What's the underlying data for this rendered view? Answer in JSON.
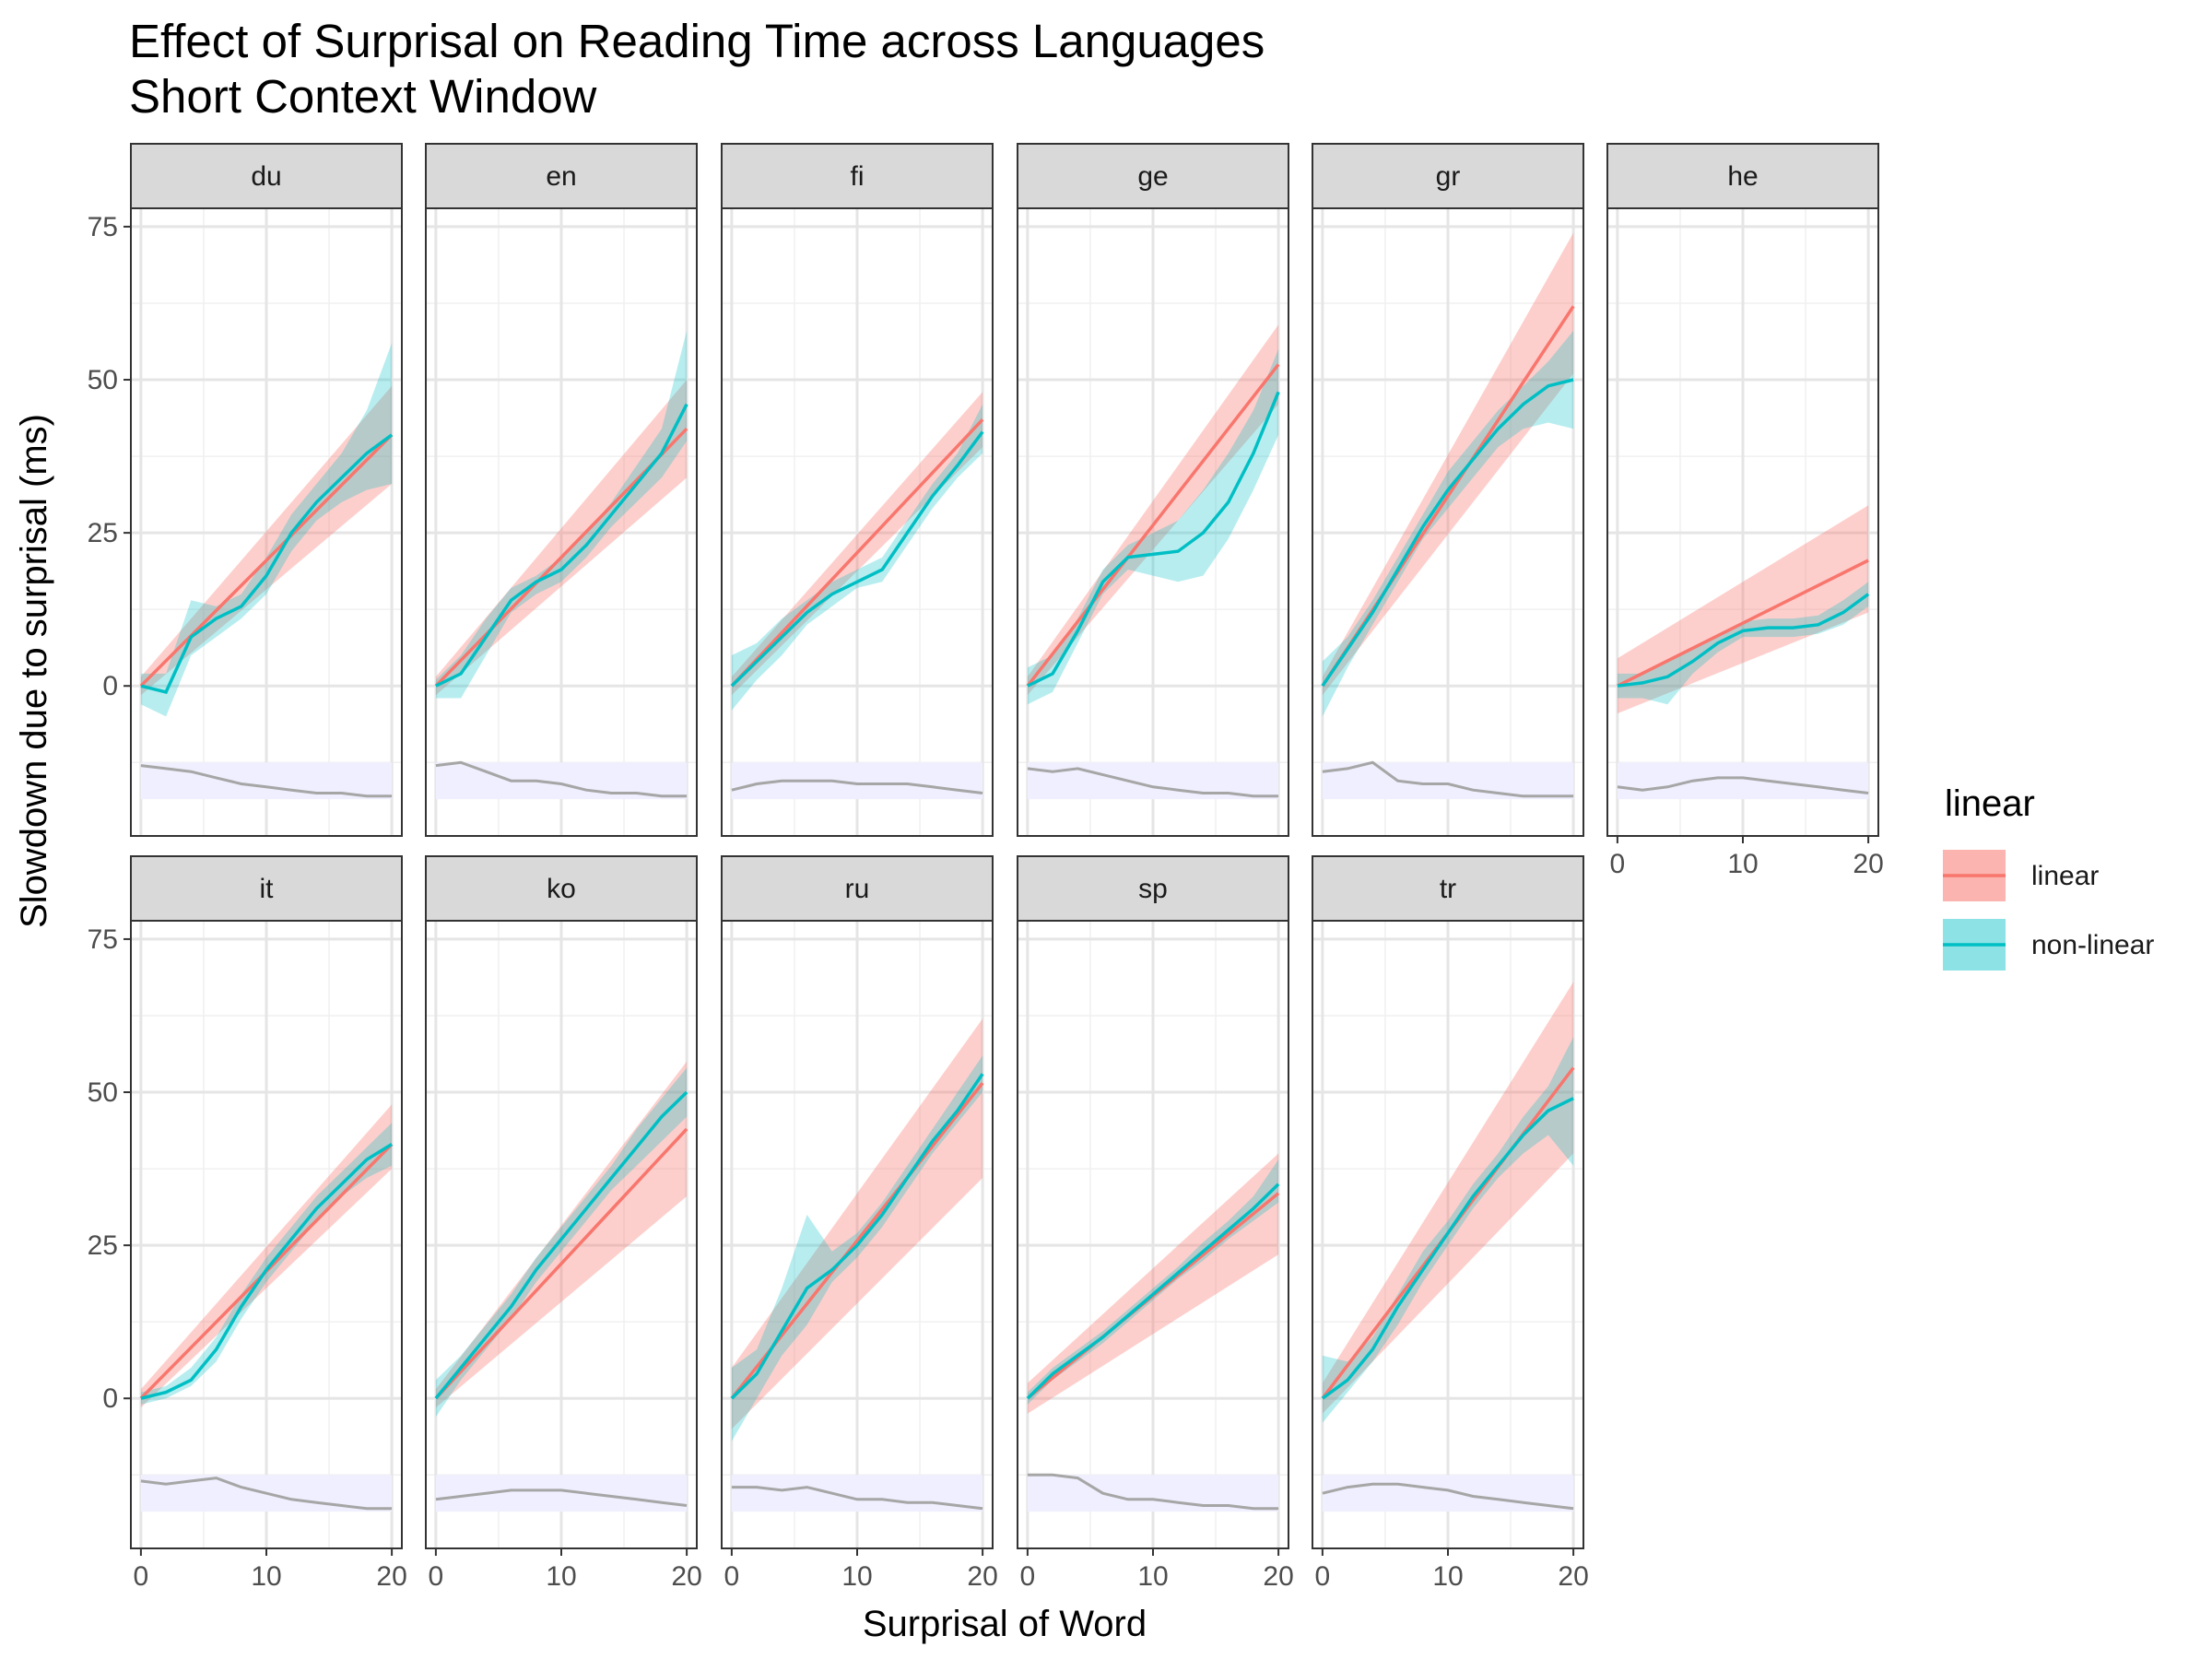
{
  "chart_data": {
    "type": "line",
    "title": "Effect of Surprisal on Reading Time across Languages",
    "subtitle": "Short Context Window",
    "xlabel": "Surprisal of Word",
    "ylabel": "Slowdown due to surprisal (ms)",
    "xlim": [
      -0.8,
      20.8
    ],
    "ylim": [
      -24.5,
      78
    ],
    "x_ticks": [
      0,
      10,
      20
    ],
    "y_ticks": [
      0,
      25,
      50,
      75
    ],
    "grid": true,
    "legend": {
      "title": "linear",
      "position": "right",
      "entries": [
        {
          "label": "linear",
          "color": "#F8766D"
        },
        {
          "label": "non-linear",
          "color": "#00BFC4"
        }
      ]
    },
    "density_color": "#A6A6A6",
    "density_band_color": "#EFEFFF",
    "facets": [
      {
        "label": "du",
        "linear": {
          "x": [
            0,
            20
          ],
          "y": [
            0,
            41
          ],
          "lower": [
            -1.5,
            33
          ],
          "upper": [
            1.5,
            49
          ]
        },
        "nonlinear": {
          "x": [
            0,
            2,
            4,
            6,
            8,
            10,
            12,
            14,
            16,
            18,
            20
          ],
          "y": [
            0,
            -1,
            8,
            11,
            13,
            18,
            25,
            30,
            34,
            38,
            41
          ],
          "lower": [
            -3,
            -5,
            5,
            8,
            11,
            15,
            22,
            27,
            30,
            32,
            33
          ],
          "upper": [
            2,
            2,
            14,
            13,
            15,
            21,
            28,
            33,
            38,
            45,
            56
          ]
        },
        "density": {
          "x": [
            0,
            2,
            4,
            6,
            8,
            10,
            12,
            14,
            16,
            18,
            20
          ],
          "y": [
            -13,
            -13.5,
            -14,
            -15,
            -16,
            -16.5,
            -17,
            -17.5,
            -17.5,
            -18,
            -18
          ]
        }
      },
      {
        "label": "en",
        "linear": {
          "x": [
            0,
            20
          ],
          "y": [
            0,
            42
          ],
          "lower": [
            -1.5,
            34
          ],
          "upper": [
            1.5,
            50
          ]
        },
        "nonlinear": {
          "x": [
            0,
            2,
            4,
            6,
            8,
            10,
            12,
            14,
            16,
            18,
            20
          ],
          "y": [
            0,
            2,
            8,
            14,
            17,
            19,
            23,
            28,
            33,
            38,
            46
          ],
          "lower": [
            -2,
            -2,
            5,
            12,
            15,
            17,
            21,
            26,
            30,
            34,
            40
          ],
          "upper": [
            1,
            5,
            11,
            16,
            18,
            21,
            25,
            30,
            36,
            42,
            58
          ]
        },
        "density": {
          "x": [
            0,
            2,
            4,
            6,
            8,
            10,
            12,
            14,
            16,
            18,
            20
          ],
          "y": [
            -13,
            -12.5,
            -14,
            -15.5,
            -15.5,
            -16,
            -17,
            -17.5,
            -17.5,
            -18,
            -18
          ]
        }
      },
      {
        "label": "fi",
        "linear": {
          "x": [
            0,
            20
          ],
          "y": [
            0,
            43.5
          ],
          "lower": [
            -1.5,
            39
          ],
          "upper": [
            1.5,
            48
          ]
        },
        "nonlinear": {
          "x": [
            0,
            2,
            4,
            6,
            8,
            10,
            12,
            14,
            16,
            18,
            20
          ],
          "y": [
            0,
            4,
            8,
            12,
            15,
            17,
            19,
            25,
            31,
            36,
            41.5
          ],
          "lower": [
            -4,
            1,
            5,
            10,
            13,
            16,
            17,
            23,
            29,
            34,
            38
          ],
          "upper": [
            5,
            7,
            11,
            14,
            17,
            19,
            21,
            27,
            33,
            38,
            46
          ]
        },
        "density": {
          "x": [
            0,
            2,
            4,
            6,
            8,
            10,
            12,
            14,
            16,
            18,
            20
          ],
          "y": [
            -17,
            -16,
            -15.5,
            -15.5,
            -15.5,
            -16,
            -16,
            -16,
            -16.5,
            -17,
            -17.5
          ]
        }
      },
      {
        "label": "ge",
        "linear": {
          "x": [
            0,
            20
          ],
          "y": [
            0,
            52.5
          ],
          "lower": [
            -1.5,
            46
          ],
          "upper": [
            1.5,
            59
          ]
        },
        "nonlinear": {
          "x": [
            0,
            2,
            4,
            6,
            8,
            10,
            12,
            14,
            16,
            18,
            20
          ],
          "y": [
            0,
            2,
            9,
            17,
            21,
            21.5,
            22,
            25,
            30,
            38,
            48
          ],
          "lower": [
            -3,
            -1,
            7,
            15,
            19,
            18,
            17,
            18,
            24,
            32,
            41
          ],
          "upper": [
            3,
            5,
            11,
            19,
            23,
            25,
            27,
            32,
            38,
            45,
            55
          ]
        },
        "density": {
          "x": [
            0,
            2,
            4,
            6,
            8,
            10,
            12,
            14,
            16,
            18,
            20
          ],
          "y": [
            -13.5,
            -14,
            -13.5,
            -14.5,
            -15.5,
            -16.5,
            -17,
            -17.5,
            -17.5,
            -18,
            -18
          ]
        }
      },
      {
        "label": "gr",
        "linear": {
          "x": [
            0,
            20
          ],
          "y": [
            0,
            62
          ],
          "lower": [
            -1.5,
            51
          ],
          "upper": [
            1.5,
            74
          ]
        },
        "nonlinear": {
          "x": [
            0,
            2,
            4,
            6,
            8,
            10,
            12,
            14,
            16,
            18,
            20
          ],
          "y": [
            0,
            6,
            12,
            19,
            26,
            32,
            37,
            42,
            46,
            49,
            50
          ],
          "lower": [
            -5,
            3,
            10,
            17,
            24,
            29,
            34,
            39,
            42,
            43,
            42
          ],
          "upper": [
            4,
            8,
            14,
            21,
            28,
            35,
            40,
            45,
            49,
            53,
            58
          ]
        },
        "density": {
          "x": [
            0,
            2,
            4,
            6,
            8,
            10,
            12,
            14,
            16,
            18,
            20
          ],
          "y": [
            -14,
            -13.5,
            -12.5,
            -15.5,
            -16,
            -16,
            -17,
            -17.5,
            -18,
            -18,
            -18
          ]
        }
      },
      {
        "label": "he",
        "linear": {
          "x": [
            0,
            20
          ],
          "y": [
            0,
            20.5
          ],
          "lower": [
            -4.5,
            12
          ],
          "upper": [
            4.5,
            29.5
          ]
        },
        "nonlinear": {
          "x": [
            0,
            2,
            4,
            6,
            8,
            10,
            12,
            14,
            16,
            18,
            20
          ],
          "y": [
            0,
            0.5,
            1.5,
            4,
            7,
            9,
            9.5,
            9.5,
            10,
            12,
            15
          ],
          "lower": [
            -2,
            -2,
            -3,
            2,
            5.5,
            8,
            8,
            8,
            8.5,
            10,
            13
          ],
          "upper": [
            2,
            2,
            4,
            6,
            8.5,
            10.5,
            11,
            11,
            11.5,
            14,
            17
          ]
        },
        "density": {
          "x": [
            0,
            2,
            4,
            6,
            8,
            10,
            12,
            14,
            16,
            18,
            20
          ],
          "y": [
            -16.5,
            -17,
            -16.5,
            -15.5,
            -15,
            -15,
            -15.5,
            -16,
            -16.5,
            -17,
            -17.5
          ]
        }
      },
      {
        "label": "it",
        "linear": {
          "x": [
            0,
            20
          ],
          "y": [
            0,
            41.5
          ],
          "lower": [
            -1.5,
            37.5
          ],
          "upper": [
            1.5,
            48
          ]
        },
        "nonlinear": {
          "x": [
            0,
            2,
            4,
            6,
            8,
            10,
            12,
            14,
            16,
            18,
            20
          ],
          "y": [
            0,
            1,
            3,
            8,
            15,
            21,
            26,
            31,
            35,
            39,
            41.5
          ],
          "lower": [
            -1,
            0,
            2,
            6,
            13,
            19,
            24,
            29,
            33,
            36,
            38
          ],
          "upper": [
            1,
            2,
            5,
            10,
            17,
            23,
            28,
            33,
            37,
            41,
            45
          ]
        },
        "density": {
          "x": [
            0,
            2,
            4,
            6,
            8,
            10,
            12,
            14,
            16,
            18,
            20
          ],
          "y": [
            -13.5,
            -14,
            -13.5,
            -13,
            -14.5,
            -15.5,
            -16.5,
            -17,
            -17.5,
            -18,
            -18
          ]
        }
      },
      {
        "label": "ko",
        "linear": {
          "x": [
            0,
            20
          ],
          "y": [
            0,
            44
          ],
          "lower": [
            -1.5,
            33
          ],
          "upper": [
            1.5,
            55
          ]
        },
        "nonlinear": {
          "x": [
            0,
            2,
            4,
            6,
            8,
            10,
            12,
            14,
            16,
            18,
            20
          ],
          "y": [
            0,
            5,
            10,
            15,
            21,
            26,
            31,
            36,
            41,
            46,
            50
          ],
          "lower": [
            -3,
            3,
            8,
            13,
            19,
            24,
            29,
            34,
            38,
            42,
            46
          ],
          "upper": [
            3,
            7,
            12,
            17,
            23,
            28,
            33,
            38,
            44,
            49,
            54
          ]
        },
        "density": {
          "x": [
            0,
            2,
            4,
            6,
            8,
            10,
            12,
            14,
            16,
            18,
            20
          ],
          "y": [
            -16.5,
            -16,
            -15.5,
            -15,
            -15,
            -15,
            -15.5,
            -16,
            -16.5,
            -17,
            -17.5
          ]
        }
      },
      {
        "label": "ru",
        "linear": {
          "x": [
            0,
            20
          ],
          "y": [
            0,
            51.5
          ],
          "lower": [
            -5,
            36
          ],
          "upper": [
            5,
            62
          ]
        },
        "nonlinear": {
          "x": [
            0,
            2,
            4,
            6,
            8,
            10,
            12,
            14,
            16,
            18,
            20
          ],
          "y": [
            0,
            4,
            11,
            18,
            21,
            25,
            30,
            36,
            42,
            47,
            53
          ],
          "lower": [
            -7,
            0,
            7,
            12,
            19,
            23,
            28,
            34,
            40,
            45,
            50
          ],
          "upper": [
            5,
            8,
            18,
            30,
            24,
            27,
            32,
            38,
            44,
            50,
            56
          ]
        },
        "density": {
          "x": [
            0,
            2,
            4,
            6,
            8,
            10,
            12,
            14,
            16,
            18,
            20
          ],
          "y": [
            -14.5,
            -14.5,
            -15,
            -14.5,
            -15.5,
            -16.5,
            -16.5,
            -17,
            -17,
            -17.5,
            -18
          ]
        }
      },
      {
        "label": "sp",
        "linear": {
          "x": [
            0,
            20
          ],
          "y": [
            0,
            33.5
          ],
          "lower": [
            -2.5,
            23.5
          ],
          "upper": [
            2.5,
            40
          ]
        },
        "nonlinear": {
          "x": [
            0,
            2,
            4,
            6,
            8,
            10,
            12,
            14,
            16,
            18,
            20
          ],
          "y": [
            0,
            4,
            7,
            10,
            13.5,
            17,
            20.5,
            24,
            27.5,
            31,
            35
          ],
          "lower": [
            -1,
            3,
            6,
            9,
            12.5,
            16,
            19.5,
            22.5,
            26,
            29,
            32
          ],
          "upper": [
            1,
            5,
            8,
            11,
            14.5,
            18,
            21.5,
            25.5,
            29,
            33,
            39
          ]
        },
        "density": {
          "x": [
            0,
            2,
            4,
            6,
            8,
            10,
            12,
            14,
            16,
            18,
            20
          ],
          "y": [
            -12.5,
            -12.5,
            -13,
            -15.5,
            -16.5,
            -16.5,
            -17,
            -17.5,
            -17.5,
            -18,
            -18
          ]
        }
      },
      {
        "label": "tr",
        "linear": {
          "x": [
            0,
            20
          ],
          "y": [
            0,
            54
          ],
          "lower": [
            -2.5,
            40
          ],
          "upper": [
            2.5,
            68
          ]
        },
        "nonlinear": {
          "x": [
            0,
            2,
            4,
            6,
            8,
            10,
            12,
            14,
            16,
            18,
            20
          ],
          "y": [
            0,
            3,
            8,
            15,
            21,
            27,
            33,
            38,
            43,
            47,
            49
          ],
          "lower": [
            -4,
            1,
            6,
            12,
            19,
            25,
            31,
            36,
            40,
            43,
            38
          ],
          "upper": [
            7,
            6,
            10,
            17,
            24,
            29,
            35,
            40,
            46,
            51,
            59
          ]
        },
        "density": {
          "x": [
            0,
            2,
            4,
            6,
            8,
            10,
            12,
            14,
            16,
            18,
            20
          ],
          "y": [
            -15.5,
            -14.5,
            -14,
            -14,
            -14.5,
            -15,
            -16,
            -16.5,
            -17,
            -17.5,
            -18
          ]
        }
      }
    ]
  }
}
